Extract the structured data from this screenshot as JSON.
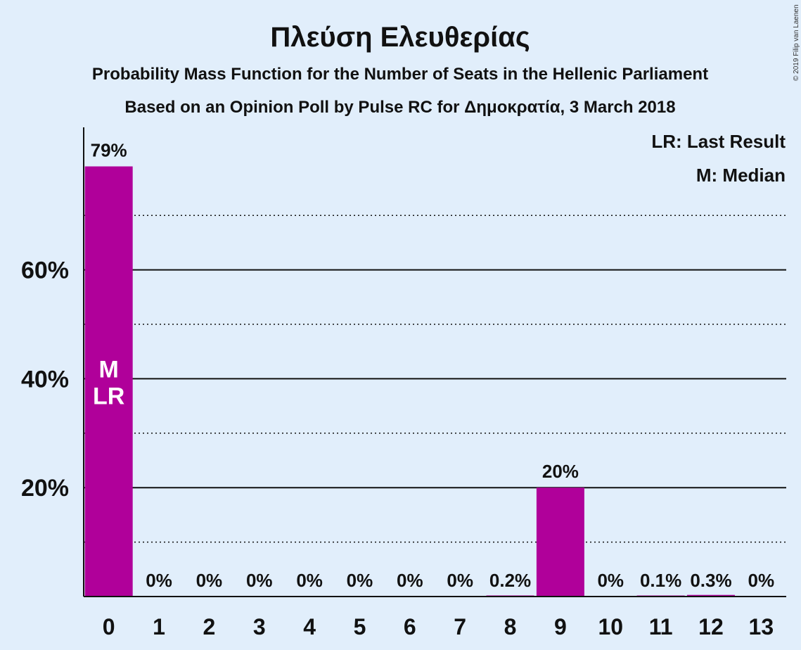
{
  "chart_data": {
    "type": "bar",
    "title": "Πλεύση Ελευθερίας",
    "subtitle": "Probability Mass Function for the Number of Seats in the Hellenic Parliament",
    "subtitle2": "Based on an Opinion Poll by Pulse RC for Δημοκρατία, 3 March 2018",
    "copyright": "© 2019 Filip van Laenen",
    "legend": [
      "LR: Last Result",
      "M: Median"
    ],
    "legend_position": "top-right",
    "categories": [
      "0",
      "1",
      "2",
      "3",
      "4",
      "5",
      "6",
      "7",
      "8",
      "9",
      "10",
      "11",
      "12",
      "13"
    ],
    "values": [
      0.79,
      0,
      0,
      0,
      0,
      0,
      0,
      0,
      0.002,
      0.2,
      0,
      0.001,
      0.003,
      0
    ],
    "value_labels": [
      "79%",
      "0%",
      "0%",
      "0%",
      "0%",
      "0%",
      "0%",
      "0%",
      "0.2%",
      "20%",
      "0%",
      "0.1%",
      "0.3%",
      "0%"
    ],
    "yticks": [
      {
        "value": 0.2,
        "label": "20%"
      },
      {
        "value": 0.4,
        "label": "40%"
      },
      {
        "value": 0.6,
        "label": "60%"
      }
    ],
    "minor_grid": [
      0.1,
      0.3,
      0.5,
      0.7
    ],
    "ylim": [
      0,
      0.86
    ],
    "median_index": 0,
    "last_result_index": 0,
    "bar_markers": [
      "M",
      "LR"
    ],
    "bar_color": "#b0009a",
    "background": "#e1eefb"
  }
}
